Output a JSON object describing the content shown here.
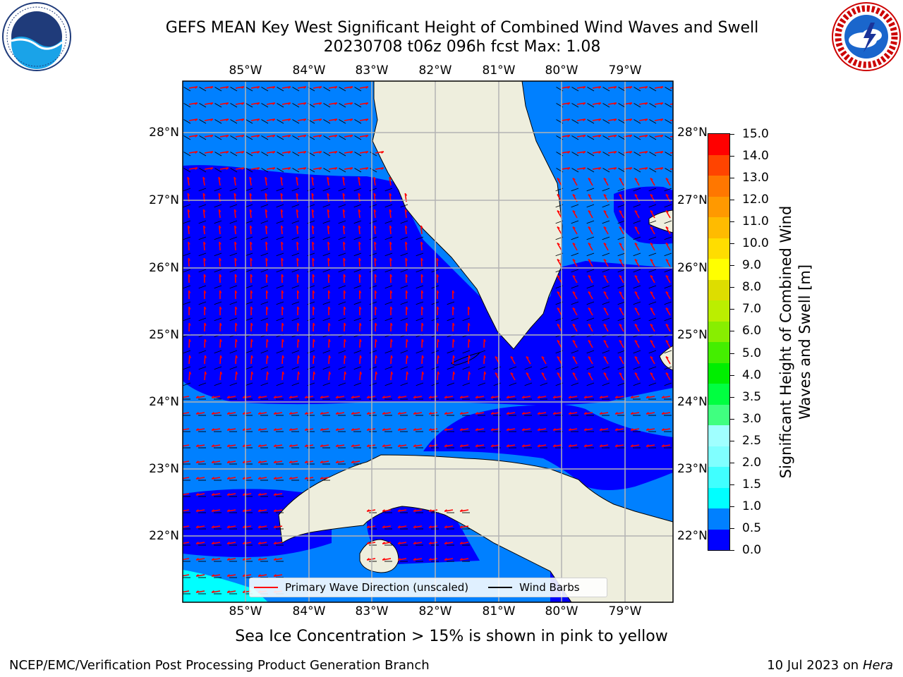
{
  "header": {
    "title_line1": "GEFS MEAN Key West Significant Height of Combined Wind Waves and Swell",
    "title_line2": "20230708 t06z 096h fcst   Max: 1.08"
  },
  "logos": {
    "left_icon": "noaa-logo-icon",
    "right_icon": "nws-logo-icon"
  },
  "map": {
    "lon_labels": [
      "85°W",
      "84°W",
      "83°W",
      "82°W",
      "81°W",
      "80°W",
      "79°W"
    ],
    "lat_labels": [
      "28°N",
      "27°N",
      "26°N",
      "25°N",
      "24°N",
      "23°N",
      "22°N"
    ],
    "colors": {
      "ocean_low": "#0000ff",
      "ocean_mid": "#0080ff",
      "ocean_high": "#00ffff",
      "land": "#eeeedd",
      "grid": "#b3b3b3"
    }
  },
  "legend": {
    "primary_wave_label": "Primary Wave Direction (unscaled)",
    "wind_barbs_label": "Wind Barbs",
    "primary_wave_color": "#ff0000",
    "wind_barbs_color": "#000000"
  },
  "colorbar": {
    "title": "Significant Height of Combined Wind Waves and Swell [m]",
    "ticks": [
      "0.0",
      "0.5",
      "1.0",
      "1.5",
      "2.0",
      "2.5",
      "3.0",
      "3.5",
      "4.0",
      "5.0",
      "6.0",
      "7.0",
      "8.0",
      "9.0",
      "10.0",
      "11.0",
      "12.0",
      "13.0",
      "14.0",
      "15.0"
    ],
    "colors": [
      "#0000ff",
      "#0080ff",
      "#00ffff",
      "#40ffff",
      "#80ffff",
      "#a0ffff",
      "#40ff80",
      "#00ff40",
      "#00ee00",
      "#44ee00",
      "#88ee00",
      "#bbee00",
      "#dddd00",
      "#ffff00",
      "#ffdd00",
      "#ffbb00",
      "#ff9900",
      "#ff7700",
      "#ff4400",
      "#ff0000"
    ]
  },
  "captions": {
    "subcaption": "Sea Ice Concentration > 15% is shown in pink to yellow",
    "footer_left": "NCEP/EMC/Verification Post Processing Product Generation Branch",
    "footer_date": "10 Jul 2023 on ",
    "footer_host": "Hera"
  }
}
